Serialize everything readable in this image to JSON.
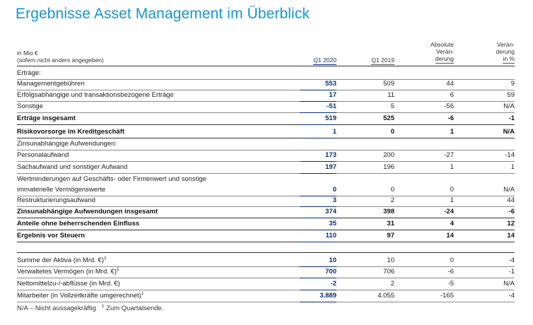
{
  "title": "Ergebnisse Asset Management im Überblick",
  "header": {
    "unit_line1": "in Mio €",
    "unit_line2": "(sofern nicht anders angegeben)",
    "col_q1_2020": "Q1 2020",
    "col_q1_2019": "Q1 2019",
    "col_abs_l1": "Absolute",
    "col_abs_l2": "Verän-",
    "col_abs_l3": "derung",
    "col_pct_l1": "Verän-",
    "col_pct_l2": "derung",
    "col_pct_l3": "in %"
  },
  "rows": [
    {
      "label": "Erträge:",
      "q1_2020": "",
      "q1_2019": "",
      "abs": "",
      "pct": ""
    },
    {
      "label": "Managementgebühren",
      "q1_2020": "553",
      "q1_2019": "509",
      "abs": "44",
      "pct": "9"
    },
    {
      "label": "Erfolgsabhängige und transaktionsbezogene Erträge",
      "q1_2020": "17",
      "q1_2019": "11",
      "abs": "6",
      "pct": "59"
    },
    {
      "label": "Sonstige",
      "q1_2020": "-51",
      "q1_2019": "5",
      "abs": "-56",
      "pct": "N/A"
    },
    {
      "label": "Erträge insgesamt",
      "q1_2020": "519",
      "q1_2019": "525",
      "abs": "-6",
      "pct": "-1"
    },
    {
      "label": "Risikovorsorge im Kreditgeschäft",
      "q1_2020": "1",
      "q1_2019": "0",
      "abs": "1",
      "pct": "N/A"
    },
    {
      "label": "Zinsunabhängige Aufwendungen:",
      "q1_2020": "",
      "q1_2019": "",
      "abs": "",
      "pct": ""
    },
    {
      "label": "Personalaufwand",
      "q1_2020": "173",
      "q1_2019": "200",
      "abs": "-27",
      "pct": "-14"
    },
    {
      "label": "Sachaufwand und sonstiger Aufwand",
      "q1_2020": "197",
      "q1_2019": "196",
      "abs": "1",
      "pct": "1"
    },
    {
      "label": "Wertminderungen auf Geschäfts- oder Firmenwert und sonstige",
      "label2": "immaterielle Vermögenswerte",
      "q1_2020": "0",
      "q1_2019": "0",
      "abs": "0",
      "pct": "N/A"
    },
    {
      "label": "Restrukturierungsaufwand",
      "q1_2020": "3",
      "q1_2019": "2",
      "abs": "1",
      "pct": "44"
    },
    {
      "label": "Zinsunabhängige Aufwendungen insgesamt",
      "q1_2020": "374",
      "q1_2019": "398",
      "abs": "-24",
      "pct": "-6"
    },
    {
      "label": "Anteile ohne beherrschenden Einfluss",
      "q1_2020": "35",
      "q1_2019": "31",
      "abs": "4",
      "pct": "12"
    },
    {
      "label": "Ergebnis vor Steuern",
      "q1_2020": "110",
      "q1_2019": "97",
      "abs": "14",
      "pct": "14"
    },
    {
      "label": "Summe der Aktiva (in Mrd. €)",
      "sup": "1",
      "q1_2020": "10",
      "q1_2019": "10",
      "abs": "0",
      "pct": "-4"
    },
    {
      "label": "Verwaltetes Vermögen (in Mrd. €)",
      "sup": "1",
      "q1_2020": "700",
      "q1_2019": "706",
      "abs": "-6",
      "pct": "-1"
    },
    {
      "label": "Nettomittelzu-/-abflüsse (in Mrd. €)",
      "q1_2020": "-2",
      "q1_2019": "2",
      "abs": "-5",
      "pct": "N/A"
    },
    {
      "label": "Mitarbeiter (in Vollzeitkräfte umgerechnet)",
      "sup": "1",
      "q1_2020": "3.889",
      "q1_2019": "4.055",
      "abs": "-165",
      "pct": "-4"
    }
  ],
  "footnote": {
    "na": "N/A – Nicht aussagekräftig",
    "sup": "1",
    "text": "Zum Quartalsende."
  }
}
